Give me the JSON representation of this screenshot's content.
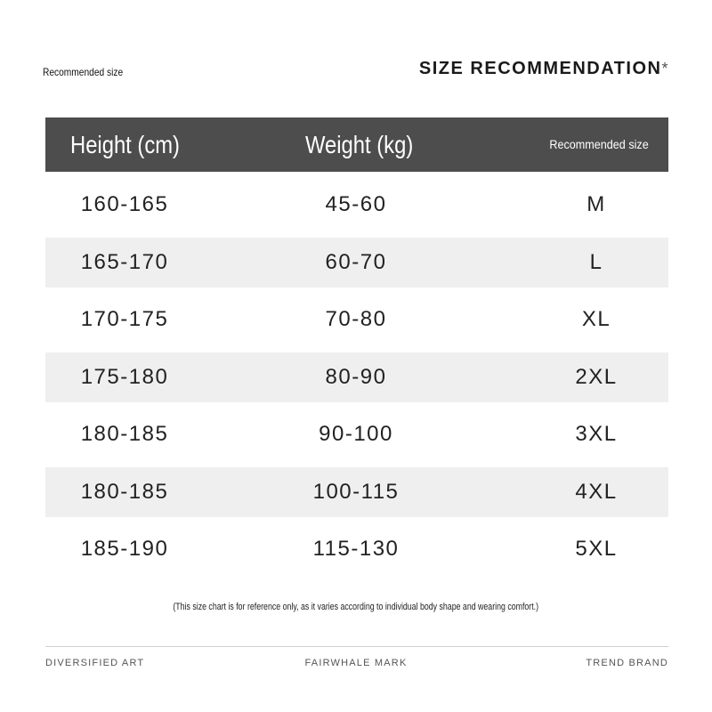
{
  "header": {
    "subtitle": "Recommended size",
    "title": "SIZE RECOMMENDATION",
    "title_mark": "*"
  },
  "table": {
    "columns": [
      "Height (cm)",
      "Weight (kg)",
      "Recommended size"
    ],
    "rows": [
      [
        "160-165",
        "45-60",
        "M"
      ],
      [
        "165-170",
        "60-70",
        "L"
      ],
      [
        "170-175",
        "70-80",
        "XL"
      ],
      [
        "175-180",
        "80-90",
        "2XL"
      ],
      [
        "180-185",
        "90-100",
        "3XL"
      ],
      [
        "180-185",
        "100-115",
        "4XL"
      ],
      [
        "185-190",
        "115-130",
        "5XL"
      ]
    ]
  },
  "note": "(This size chart is for reference only, as it varies according to individual body shape and wearing comfort.)",
  "footer": {
    "left": "DIVERSIFIED ART",
    "center": "FAIRWHALE MARK",
    "right": "TREND BRAND"
  },
  "colors": {
    "header_bg": "#4d4d4d",
    "stripe": "#efefef"
  }
}
